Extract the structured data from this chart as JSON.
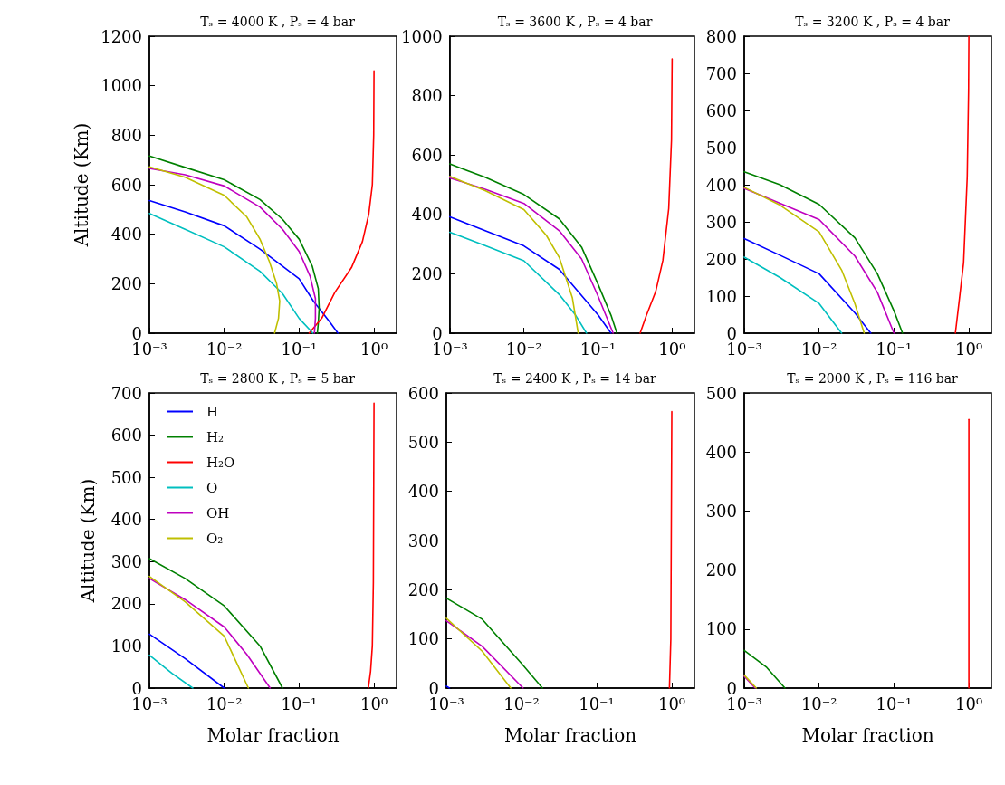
{
  "chart_data": [
    {
      "type": "line",
      "title": "Tₛ = 4000 K , Pₛ = 4 bar",
      "ylabel": "Altitude (Km)",
      "log": "x",
      "grid": false,
      "xlim": [
        0.001,
        2
      ],
      "xticks": [
        {
          "value": 0.001,
          "label": "10⁻³"
        },
        {
          "value": 0.01,
          "label": "10⁻²"
        },
        {
          "value": 0.1,
          "label": "10⁻¹"
        },
        {
          "value": 1,
          "label": "10⁰"
        }
      ],
      "ylim": [
        0,
        1200
      ],
      "yticks": [
        0,
        200,
        400,
        600,
        800,
        1000,
        1200
      ],
      "tick_labels": true,
      "series": [
        {
          "color": "#0000ff",
          "x": [
            0.001,
            0.003,
            0.01,
            0.03,
            0.1,
            0.155,
            0.26,
            0.33
          ],
          "values": [
            536,
            490,
            434,
            340,
            220,
            130,
            43,
            0
          ]
        },
        {
          "color": "#008000",
          "x": [
            0.001,
            0.003,
            0.01,
            0.03,
            0.06,
            0.1,
            0.15,
            0.18,
            0.185,
            0.18,
            0.175
          ],
          "values": [
            716,
            670,
            620,
            540,
            460,
            380,
            270,
            180,
            100,
            40,
            0
          ]
        },
        {
          "color": "#ff0000",
          "x": [
            0.136,
            0.2,
            0.3,
            0.5,
            0.7,
            0.85,
            0.95,
            0.99,
            1.0
          ],
          "values": [
            0,
            60,
            165,
            265,
            370,
            480,
            600,
            800,
            1060
          ]
        },
        {
          "color": "#00bfbf",
          "x": [
            0.001,
            0.003,
            0.01,
            0.03,
            0.06,
            0.1,
            0.153
          ],
          "values": [
            484,
            420,
            349,
            250,
            160,
            60,
            0
          ]
        },
        {
          "color": "#bf00bf",
          "x": [
            0.001,
            0.003,
            0.01,
            0.03,
            0.06,
            0.1,
            0.14,
            0.165,
            0.165,
            0.16
          ],
          "values": [
            666,
            640,
            595,
            510,
            420,
            330,
            230,
            140,
            60,
            0
          ]
        },
        {
          "color": "#bfbf00",
          "x": [
            0.001,
            0.003,
            0.01,
            0.02,
            0.03,
            0.04,
            0.05,
            0.055,
            0.053,
            0.047
          ],
          "values": [
            672,
            630,
            557,
            470,
            380,
            290,
            200,
            130,
            60,
            0
          ]
        }
      ]
    },
    {
      "type": "line",
      "title": "Tₛ = 3600 K , Pₛ = 4 bar",
      "log": "x",
      "grid": false,
      "xlim": [
        0.001,
        2
      ],
      "xticks": [
        {
          "value": 0.001,
          "label": "10⁻³"
        },
        {
          "value": 0.01,
          "label": "10⁻²"
        },
        {
          "value": 0.1,
          "label": "10⁻¹"
        },
        {
          "value": 1,
          "label": "10⁰"
        }
      ],
      "ylim": [
        0,
        1000
      ],
      "yticks": [
        0,
        200,
        400,
        600,
        800,
        1000
      ],
      "series": [
        {
          "color": "#0000ff",
          "x": [
            0.001,
            0.003,
            0.01,
            0.03,
            0.1,
            0.15
          ],
          "values": [
            392,
            345,
            294,
            215,
            62,
            0
          ]
        },
        {
          "color": "#008000",
          "x": [
            0.001,
            0.003,
            0.01,
            0.03,
            0.06,
            0.1,
            0.15,
            0.18
          ],
          "values": [
            570,
            525,
            467,
            385,
            290,
            165,
            60,
            0
          ]
        },
        {
          "color": "#ff0000",
          "x": [
            0.37,
            0.45,
            0.6,
            0.75,
            0.9,
            0.98,
            1.0
          ],
          "values": [
            0,
            60,
            140,
            245,
            420,
            650,
            924
          ]
        },
        {
          "color": "#00bfbf",
          "x": [
            0.001,
            0.003,
            0.01,
            0.03,
            0.05,
            0.07
          ],
          "values": [
            340,
            295,
            244,
            130,
            60,
            0
          ]
        },
        {
          "color": "#bf00bf",
          "x": [
            0.001,
            0.003,
            0.01,
            0.03,
            0.06,
            0.1,
            0.16
          ],
          "values": [
            523,
            485,
            437,
            345,
            250,
            125,
            0
          ]
        },
        {
          "color": "#bfbf00",
          "x": [
            0.001,
            0.003,
            0.01,
            0.02,
            0.03,
            0.045,
            0.054
          ],
          "values": [
            528,
            480,
            416,
            330,
            255,
            120,
            0
          ]
        }
      ]
    },
    {
      "type": "line",
      "title": "Tₛ = 3200 K , Pₛ = 4 bar",
      "log": "x",
      "grid": false,
      "xlim": [
        0.001,
        2
      ],
      "xticks": [
        {
          "value": 0.001,
          "label": "10⁻³"
        },
        {
          "value": 0.01,
          "label": "10⁻²"
        },
        {
          "value": 0.1,
          "label": "10⁻¹"
        },
        {
          "value": 1,
          "label": "10⁰"
        }
      ],
      "ylim": [
        0,
        800
      ],
      "yticks": [
        0,
        100,
        200,
        300,
        400,
        500,
        600,
        700,
        800
      ],
      "series": [
        {
          "color": "#0000ff",
          "x": [
            0.001,
            0.003,
            0.01,
            0.03,
            0.049
          ],
          "values": [
            255,
            210,
            160,
            55,
            0
          ]
        },
        {
          "color": "#008000",
          "x": [
            0.001,
            0.003,
            0.01,
            0.03,
            0.06,
            0.1,
            0.13
          ],
          "values": [
            435,
            400,
            347,
            257,
            160,
            60,
            0
          ]
        },
        {
          "color": "#ff0000",
          "x": [
            0.66,
            0.75,
            0.85,
            0.95,
            0.99,
            1.0
          ],
          "values": [
            0,
            95,
            190,
            420,
            650,
            800
          ]
        },
        {
          "color": "#00bfbf",
          "x": [
            0.001,
            0.003,
            0.01,
            0.02
          ],
          "values": [
            205,
            150,
            80,
            0
          ]
        },
        {
          "color": "#bf00bf",
          "x": [
            0.001,
            0.003,
            0.01,
            0.03,
            0.06,
            0.1
          ],
          "values": [
            390,
            350,
            306,
            208,
            110,
            0
          ]
        },
        {
          "color": "#bfbf00",
          "x": [
            0.001,
            0.003,
            0.01,
            0.02,
            0.03,
            0.04
          ],
          "values": [
            393,
            345,
            273,
            170,
            80,
            0
          ]
        }
      ]
    },
    {
      "type": "line",
      "title": "Tₛ = 2800 K , Pₛ = 5 bar",
      "xlabel": "Molar fraction",
      "ylabel": "Altitude (Km)",
      "log": "x",
      "grid": false,
      "legend": "top left",
      "xlim": [
        0.001,
        2
      ],
      "xticks": [
        {
          "value": 0.001,
          "label": "10⁻³"
        },
        {
          "value": 0.01,
          "label": "10⁻²"
        },
        {
          "value": 0.1,
          "label": "10⁻¹"
        },
        {
          "value": 1,
          "label": "10⁰"
        }
      ],
      "ylim": [
        0,
        700
      ],
      "yticks": [
        0,
        100,
        200,
        300,
        400,
        500,
        600,
        700
      ],
      "series": [
        {
          "name": "H",
          "color": "#0000ff",
          "x": [
            0.001,
            0.003,
            0.01
          ],
          "values": [
            128,
            70,
            0
          ]
        },
        {
          "name": "H₂",
          "color": "#008000",
          "x": [
            0.001,
            0.003,
            0.01,
            0.03,
            0.06
          ],
          "values": [
            307,
            260,
            195,
            100,
            0
          ]
        },
        {
          "name": "H₂O",
          "color": "#ff0000",
          "x": [
            0.84,
            0.9,
            0.95,
            0.98,
            1.0
          ],
          "values": [
            0,
            40,
            100,
            250,
            676
          ]
        },
        {
          "name": "O",
          "color": "#00bfbf",
          "x": [
            0.001,
            0.002,
            0.0038
          ],
          "values": [
            78,
            35,
            0
          ]
        },
        {
          "name": "OH",
          "color": "#bf00bf",
          "x": [
            0.001,
            0.003,
            0.01,
            0.02,
            0.041
          ],
          "values": [
            260,
            210,
            145,
            80,
            0
          ]
        },
        {
          "name": "O₂",
          "color": "#bfbf00",
          "x": [
            0.001,
            0.003,
            0.01,
            0.021
          ],
          "values": [
            265,
            205,
            123,
            0
          ]
        }
      ]
    },
    {
      "type": "line",
      "title": "Tₛ = 2400 K , Pₛ = 14 bar",
      "xlabel": "Molar fraction",
      "log": "x",
      "grid": false,
      "xlim": [
        0.001,
        2
      ],
      "xticks": [
        {
          "value": 0.001,
          "label": "10⁻³"
        },
        {
          "value": 0.01,
          "label": "10⁻²"
        },
        {
          "value": 0.1,
          "label": "10⁻¹"
        },
        {
          "value": 1,
          "label": "10⁰"
        }
      ],
      "ylim": [
        0,
        600
      ],
      "yticks": [
        0,
        100,
        200,
        300,
        400,
        500,
        600
      ],
      "series": [
        {
          "color": "#0000ff",
          "x": [
            0.001,
            0.0011
          ],
          "values": [
            4,
            0
          ]
        },
        {
          "color": "#008000",
          "x": [
            0.001,
            0.003,
            0.01,
            0.019
          ],
          "values": [
            183,
            140,
            50,
            0
          ]
        },
        {
          "color": "#ff0000",
          "x": [
            0.93,
            0.97,
            1.0
          ],
          "values": [
            0,
            100,
            562
          ]
        },
        {
          "color": "#bf00bf",
          "x": [
            0.001,
            0.003,
            0.0105
          ],
          "values": [
            137,
            85,
            0
          ]
        },
        {
          "color": "#bfbf00",
          "x": [
            0.001,
            0.003,
            0.0072
          ],
          "values": [
            142,
            75,
            0
          ]
        }
      ]
    },
    {
      "type": "line",
      "title": "Tₛ = 2000 K , Pₛ = 116 bar",
      "xlabel": "Molar fraction",
      "log": "x",
      "grid": false,
      "xlim": [
        0.001,
        2
      ],
      "xticks": [
        {
          "value": 0.001,
          "label": "10⁻³"
        },
        {
          "value": 0.01,
          "label": "10⁻²"
        },
        {
          "value": 0.1,
          "label": "10⁻¹"
        },
        {
          "value": 1,
          "label": "10⁰"
        }
      ],
      "ylim": [
        0,
        500
      ],
      "yticks": [
        0,
        100,
        200,
        300,
        400,
        500
      ],
      "series": [
        {
          "color": "#008000",
          "x": [
            0.001,
            0.002,
            0.0035
          ],
          "values": [
            64,
            35,
            0
          ]
        },
        {
          "color": "#ff0000",
          "x": [
            1.0,
            1.0
          ],
          "values": [
            0,
            455
          ]
        },
        {
          "color": "#bf00bf",
          "x": [
            0.001,
            0.0014
          ],
          "values": [
            20,
            0
          ]
        },
        {
          "color": "#bfbf00",
          "x": [
            0.001,
            0.00145
          ],
          "values": [
            22,
            0
          ]
        }
      ]
    }
  ]
}
